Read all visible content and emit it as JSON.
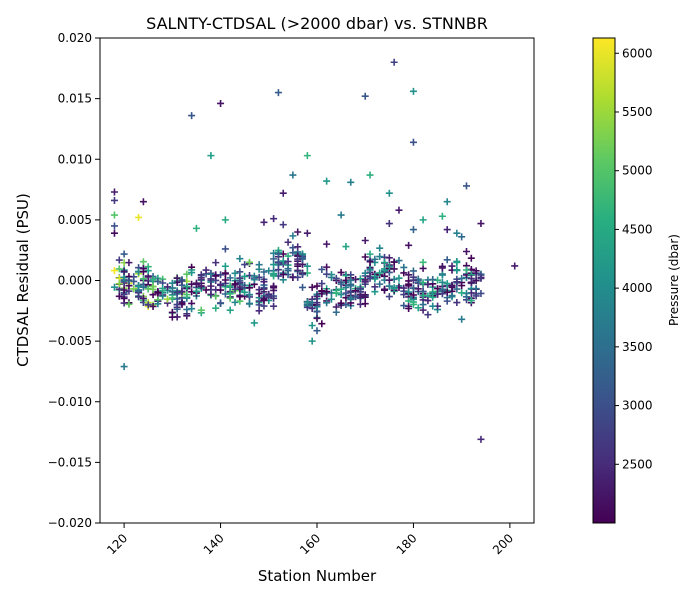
{
  "chart_data": {
    "type": "scatter",
    "title": "SALNTY-CTDSAL (>2000 dbar) vs. STNNBR",
    "xlabel": "Station Number",
    "ylabel": "CTDSAL Residual (PSU)",
    "xlim": [
      115,
      205
    ],
    "ylim": [
      -0.02,
      0.02
    ],
    "x_ticks": [
      120,
      140,
      160,
      180,
      200
    ],
    "y_ticks": [
      -0.02,
      -0.015,
      -0.01,
      -0.005,
      0.0,
      0.005,
      0.01,
      0.015,
      0.02
    ],
    "y_tick_labels": [
      "−0.020",
      "−0.015",
      "−0.010",
      "−0.005",
      "0.000",
      "0.005",
      "0.010",
      "0.015",
      "0.020"
    ],
    "marker": "plus",
    "grid": false,
    "colormap": "viridis",
    "colorbar": {
      "label": "Pressure (dbar)",
      "min": 2000,
      "max": 6130,
      "ticks": [
        2500,
        3000,
        3500,
        4000,
        4500,
        5000,
        5500,
        6000
      ]
    },
    "outliers": [
      {
        "x": 118,
        "y": 0.0073,
        "c": 2300
      },
      {
        "x": 118,
        "y": 0.0066,
        "c": 2700
      },
      {
        "x": 118,
        "y": 0.0054,
        "c": 5000
      },
      {
        "x": 118,
        "y": 0.0045,
        "c": 3000
      },
      {
        "x": 118,
        "y": 0.0039,
        "c": 2100
      },
      {
        "x": 120,
        "y": -0.0071,
        "c": 3700
      },
      {
        "x": 123,
        "y": 0.0052,
        "c": 6000
      },
      {
        "x": 124,
        "y": 0.0065,
        "c": 2200
      },
      {
        "x": 134,
        "y": 0.0136,
        "c": 3100
      },
      {
        "x": 135,
        "y": 0.0043,
        "c": 4600
      },
      {
        "x": 138,
        "y": 0.0103,
        "c": 4300
      },
      {
        "x": 140,
        "y": 0.0146,
        "c": 2200
      },
      {
        "x": 141,
        "y": 0.005,
        "c": 4500
      },
      {
        "x": 141,
        "y": 0.0026,
        "c": 3000
      },
      {
        "x": 146,
        "y": 0.0015,
        "c": 5200
      },
      {
        "x": 147,
        "y": -0.0035,
        "c": 4200
      },
      {
        "x": 149,
        "y": 0.0048,
        "c": 2400
      },
      {
        "x": 151,
        "y": 0.0051,
        "c": 2500
      },
      {
        "x": 152,
        "y": 0.0155,
        "c": 3200
      },
      {
        "x": 153,
        "y": 0.0072,
        "c": 2300
      },
      {
        "x": 153,
        "y": 0.0046,
        "c": 2700
      },
      {
        "x": 155,
        "y": 0.0087,
        "c": 3600
      },
      {
        "x": 156,
        "y": 0.004,
        "c": 2200
      },
      {
        "x": 158,
        "y": 0.0103,
        "c": 4700
      },
      {
        "x": 158,
        "y": 0.0039,
        "c": 2300
      },
      {
        "x": 159,
        "y": -0.005,
        "c": 4100
      },
      {
        "x": 162,
        "y": 0.0082,
        "c": 4200
      },
      {
        "x": 162,
        "y": 0.003,
        "c": 2200
      },
      {
        "x": 165,
        "y": 0.0054,
        "c": 3700
      },
      {
        "x": 166,
        "y": 0.0028,
        "c": 4400
      },
      {
        "x": 167,
        "y": 0.0081,
        "c": 3800
      },
      {
        "x": 170,
        "y": 0.0152,
        "c": 3100
      },
      {
        "x": 170,
        "y": 0.0033,
        "c": 2300
      },
      {
        "x": 171,
        "y": 0.0087,
        "c": 4600
      },
      {
        "x": 175,
        "y": 0.0072,
        "c": 4100
      },
      {
        "x": 175,
        "y": 0.0047,
        "c": 2600
      },
      {
        "x": 176,
        "y": 0.018,
        "c": 2800
      },
      {
        "x": 177,
        "y": 0.0058,
        "c": 2300
      },
      {
        "x": 179,
        "y": 0.0029,
        "c": 2200
      },
      {
        "x": 180,
        "y": 0.0156,
        "c": 4100
      },
      {
        "x": 180,
        "y": 0.0114,
        "c": 3000
      },
      {
        "x": 180,
        "y": 0.0042,
        "c": 3300
      },
      {
        "x": 182,
        "y": 0.005,
        "c": 4400
      },
      {
        "x": 182,
        "y": 0.0015,
        "c": 4800
      },
      {
        "x": 186,
        "y": 0.0053,
        "c": 4600
      },
      {
        "x": 187,
        "y": 0.0065,
        "c": 3900
      },
      {
        "x": 187,
        "y": 0.0042,
        "c": 2400
      },
      {
        "x": 189,
        "y": 0.0039,
        "c": 3800
      },
      {
        "x": 190,
        "y": 0.0036,
        "c": 3400
      },
      {
        "x": 190,
        "y": -0.0032,
        "c": 3700
      },
      {
        "x": 191,
        "y": 0.0078,
        "c": 3100
      },
      {
        "x": 194,
        "y": 0.0047,
        "c": 2200
      },
      {
        "x": 194,
        "y": -0.0131,
        "c": 2500
      },
      {
        "x": 201,
        "y": 0.0012,
        "c": 2300
      }
    ],
    "clusters": [
      {
        "x0": 118,
        "x1": 126,
        "ymean": -0.0003,
        "yspread": 0.0011,
        "n": 90,
        "cmin": 2000,
        "cmax": 6100
      },
      {
        "x0": 126,
        "x1": 134,
        "ymean": -0.001,
        "yspread": 0.001,
        "n": 80,
        "cmin": 2000,
        "cmax": 5700
      },
      {
        "x0": 134,
        "x1": 146,
        "ymean": -0.0004,
        "yspread": 0.001,
        "n": 100,
        "cmin": 2000,
        "cmax": 5200
      },
      {
        "x0": 146,
        "x1": 151,
        "ymean": -0.0008,
        "yspread": 0.0011,
        "n": 45,
        "cmin": 2000,
        "cmax": 4600
      },
      {
        "x0": 151,
        "x1": 158,
        "ymean": 0.0015,
        "yspread": 0.001,
        "n": 60,
        "cmin": 2000,
        "cmax": 4600
      },
      {
        "x0": 158,
        "x1": 161,
        "ymean": -0.0022,
        "yspread": 0.001,
        "n": 35,
        "cmin": 2000,
        "cmax": 4200
      },
      {
        "x0": 161,
        "x1": 170,
        "ymean": -0.0009,
        "yspread": 0.001,
        "n": 75,
        "cmin": 2000,
        "cmax": 4700
      },
      {
        "x0": 170,
        "x1": 178,
        "ymean": 0.0007,
        "yspread": 0.001,
        "n": 65,
        "cmin": 2000,
        "cmax": 4500
      },
      {
        "x0": 178,
        "x1": 186,
        "ymean": -0.001,
        "yspread": 0.0009,
        "n": 70,
        "cmin": 2000,
        "cmax": 4800
      },
      {
        "x0": 186,
        "x1": 194,
        "ymean": 0.0,
        "yspread": 0.0009,
        "n": 75,
        "cmin": 2000,
        "cmax": 4600
      }
    ]
  }
}
